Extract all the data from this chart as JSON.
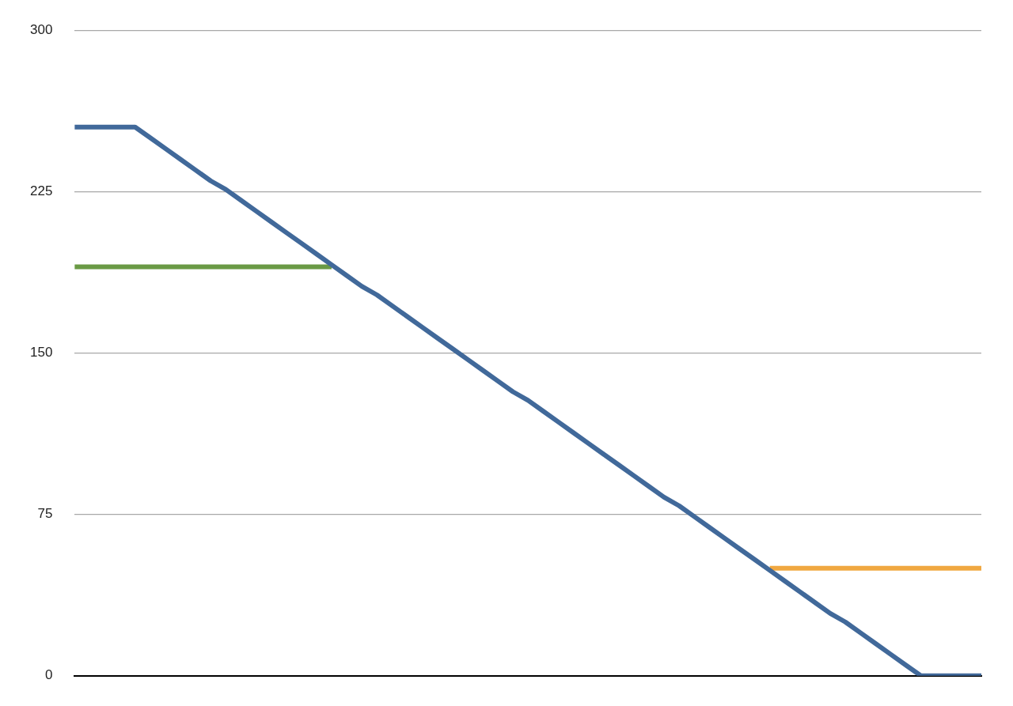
{
  "chart_data": {
    "type": "line",
    "categories": [
      null,
      null,
      null,
      null,
      null,
      null,
      null,
      null,
      null,
      null,
      null,
      null,
      null,
      null,
      null,
      null,
      null,
      null,
      null,
      null,
      null,
      null,
      null,
      null,
      null,
      null,
      null,
      null,
      null,
      null,
      null,
      null,
      null,
      null,
      null,
      null,
      null,
      null,
      null,
      null,
      null,
      null,
      null,
      null,
      null,
      null,
      null,
      null,
      null,
      null,
      null,
      null,
      null,
      null,
      null,
      null,
      null,
      null,
      null,
      null,
      null
    ],
    "series": [
      {
        "color": "#41699a",
        "values": [
          255,
          255,
          255,
          255,
          255,
          250,
          245,
          240,
          235,
          230,
          226,
          221,
          216,
          211,
          206,
          201,
          196,
          191,
          186,
          181,
          177,
          172,
          167,
          162,
          157,
          152,
          147,
          142,
          137,
          132,
          128,
          123,
          118,
          113,
          108,
          103,
          98,
          93,
          88,
          83,
          79,
          74,
          69,
          64,
          59,
          54,
          49,
          44,
          39,
          34,
          29,
          25,
          20,
          15,
          10,
          5,
          0,
          0,
          0,
          0,
          0
        ]
      },
      {
        "color": "#6a9a45",
        "values": [
          190,
          190,
          190,
          190,
          190,
          190,
          190,
          190,
          190,
          190,
          190,
          190,
          190,
          190,
          190,
          190,
          190,
          190,
          null,
          null,
          null,
          null,
          null,
          null,
          null,
          null,
          null,
          null,
          null,
          null,
          null,
          null,
          null,
          null,
          null,
          null,
          null,
          null,
          null,
          null,
          null,
          null,
          null,
          null,
          null,
          null,
          null,
          null,
          null,
          null,
          null,
          null,
          null,
          null,
          null,
          null,
          null,
          null,
          null,
          null,
          null
        ]
      },
      {
        "color": "#f0a841",
        "values": [
          null,
          null,
          null,
          null,
          null,
          null,
          null,
          null,
          null,
          null,
          null,
          null,
          null,
          null,
          null,
          null,
          null,
          null,
          null,
          null,
          null,
          null,
          null,
          null,
          null,
          null,
          null,
          null,
          null,
          null,
          null,
          null,
          null,
          null,
          null,
          null,
          null,
          null,
          null,
          null,
          null,
          null,
          null,
          null,
          null,
          null,
          50,
          50,
          50,
          50,
          50,
          50,
          50,
          50,
          50,
          50,
          50,
          50,
          50,
          50,
          50
        ]
      }
    ],
    "ylim": [
      0,
      300
    ],
    "yticks": [
      0,
      75,
      150,
      225,
      300
    ],
    "grid": "y",
    "legend": false,
    "marker": "none",
    "line_style": "solid",
    "tick_labels": "y"
  }
}
